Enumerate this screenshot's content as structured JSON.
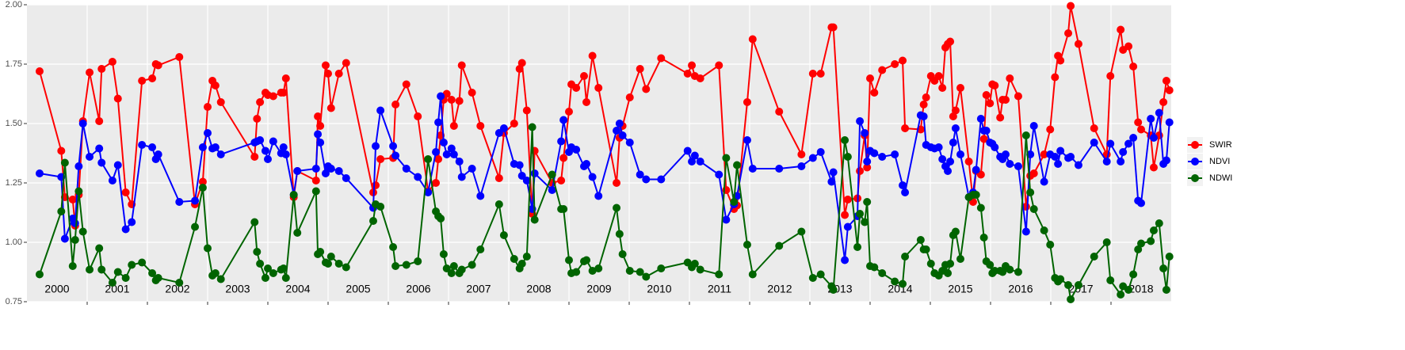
{
  "chart_data": {
    "type": "line",
    "x": [
      2000.21,
      2000.57,
      2000.63,
      2000.76,
      2000.8,
      2000.86,
      2000.93,
      2001.04,
      2001.2,
      2001.24,
      2001.42,
      2001.51,
      2001.64,
      2001.74,
      2001.91,
      2002.08,
      2002.14,
      2002.18,
      2002.53,
      2002.79,
      2002.92,
      2003.0,
      2003.08,
      2003.13,
      2003.22,
      2003.78,
      2003.82,
      2003.87,
      2003.96,
      2004.0,
      2004.09,
      2004.22,
      2004.26,
      2004.3,
      2004.43,
      2004.49,
      2004.8,
      2004.83,
      2004.87,
      2004.96,
      2005.0,
      2005.05,
      2005.18,
      2005.3,
      2005.75,
      2005.79,
      2005.87,
      2006.08,
      2006.12,
      2006.3,
      2006.49,
      2006.66,
      2006.79,
      2006.83,
      2006.87,
      2006.92,
      2006.97,
      2007.05,
      2007.09,
      2007.18,
      2007.22,
      2007.39,
      2007.53,
      2007.84,
      2007.92,
      2008.09,
      2008.18,
      2008.22,
      2008.3,
      2008.39,
      2008.43,
      2008.72,
      2008.87,
      2008.91,
      2009.0,
      2009.04,
      2009.12,
      2009.25,
      2009.29,
      2009.39,
      2009.49,
      2009.79,
      2009.84,
      2009.89,
      2010.01,
      2010.18,
      2010.28,
      2010.53,
      2010.97,
      2011.04,
      2011.09,
      2011.18,
      2011.49,
      2011.61,
      2011.74,
      2011.79,
      2011.96,
      2012.05,
      2012.49,
      2012.86,
      2013.05,
      2013.18,
      2013.36,
      2013.39,
      2013.58,
      2013.63,
      2013.79,
      2013.83,
      2013.91,
      2013.95,
      2014.0,
      2014.07,
      2014.2,
      2014.41,
      2014.54,
      2014.58,
      2014.84,
      2014.89,
      2014.93,
      2015.01,
      2015.07,
      2015.14,
      2015.2,
      2015.25,
      2015.29,
      2015.33,
      2015.38,
      2015.42,
      2015.5,
      2015.64,
      2015.71,
      2015.76,
      2015.84,
      2015.89,
      2015.93,
      2015.99,
      2016.03,
      2016.07,
      2016.16,
      2016.2,
      2016.25,
      2016.32,
      2016.46,
      2016.59,
      2016.66,
      2016.72,
      2016.89,
      2016.99,
      2017.07,
      2017.12,
      2017.16,
      2017.29,
      2017.33,
      2017.46,
      2017.72,
      2017.93,
      2017.99,
      2018.16,
      2018.2,
      2018.29,
      2018.37,
      2018.45,
      2018.5,
      2018.66,
      2018.71,
      2018.8,
      2018.87,
      2018.92,
      2018.97
    ],
    "series": [
      {
        "name": "SWIR",
        "color": "#ff0000",
        "values": [
          1.72,
          1.385,
          1.19,
          1.18,
          1.07,
          1.2,
          1.51,
          1.715,
          1.51,
          1.73,
          1.76,
          1.605,
          1.21,
          1.16,
          1.68,
          1.69,
          1.75,
          1.745,
          1.78,
          1.16,
          1.255,
          1.57,
          1.68,
          1.66,
          1.59,
          1.36,
          1.52,
          1.59,
          1.63,
          1.62,
          1.615,
          1.63,
          1.63,
          1.69,
          1.19,
          1.3,
          1.26,
          1.53,
          1.49,
          1.745,
          1.71,
          1.565,
          1.71,
          1.755,
          1.21,
          1.24,
          1.35,
          1.355,
          1.58,
          1.665,
          1.53,
          1.215,
          1.25,
          1.35,
          1.45,
          1.6,
          1.625,
          1.6,
          1.49,
          1.595,
          1.745,
          1.63,
          1.49,
          1.27,
          1.46,
          1.5,
          1.73,
          1.755,
          1.555,
          1.12,
          1.385,
          1.25,
          1.26,
          1.355,
          1.55,
          1.665,
          1.65,
          1.7,
          1.59,
          1.785,
          1.65,
          1.25,
          1.44,
          1.49,
          1.61,
          1.73,
          1.645,
          1.775,
          1.71,
          1.745,
          1.7,
          1.69,
          1.745,
          1.22,
          1.14,
          1.155,
          1.59,
          1.855,
          1.55,
          1.37,
          1.71,
          1.71,
          1.905,
          1.905,
          1.115,
          1.18,
          1.185,
          1.3,
          1.45,
          1.315,
          1.69,
          1.63,
          1.725,
          1.75,
          1.765,
          1.48,
          1.475,
          1.58,
          1.61,
          1.7,
          1.68,
          1.7,
          1.65,
          1.82,
          1.835,
          1.845,
          1.53,
          1.555,
          1.65,
          1.34,
          1.17,
          1.3,
          1.285,
          1.435,
          1.62,
          1.585,
          1.665,
          1.66,
          1.525,
          1.6,
          1.6,
          1.69,
          1.615,
          1.15,
          1.28,
          1.29,
          1.37,
          1.475,
          1.695,
          1.785,
          1.765,
          1.88,
          1.995,
          1.835,
          1.48,
          1.37,
          1.7,
          1.895,
          1.81,
          1.825,
          1.74,
          1.505,
          1.475,
          1.45,
          1.315,
          1.45,
          1.59,
          1.68,
          1.64
        ]
      },
      {
        "name": "NDVI",
        "color": "#0000ff",
        "values": [
          1.29,
          1.275,
          1.015,
          1.1,
          1.08,
          1.32,
          1.5,
          1.36,
          1.395,
          1.335,
          1.26,
          1.325,
          1.055,
          1.085,
          1.41,
          1.4,
          1.35,
          1.37,
          1.17,
          1.175,
          1.4,
          1.46,
          1.395,
          1.4,
          1.37,
          1.42,
          1.425,
          1.43,
          1.385,
          1.35,
          1.425,
          1.375,
          1.4,
          1.37,
          1.2,
          1.3,
          1.31,
          1.455,
          1.42,
          1.29,
          1.32,
          1.31,
          1.3,
          1.27,
          1.145,
          1.405,
          1.555,
          1.405,
          1.365,
          1.31,
          1.275,
          1.21,
          1.38,
          1.505,
          1.615,
          1.42,
          1.37,
          1.395,
          1.37,
          1.34,
          1.275,
          1.31,
          1.195,
          1.46,
          1.48,
          1.33,
          1.325,
          1.28,
          1.26,
          1.14,
          1.29,
          1.22,
          1.425,
          1.515,
          1.38,
          1.4,
          1.39,
          1.32,
          1.33,
          1.275,
          1.195,
          1.47,
          1.5,
          1.45,
          1.42,
          1.285,
          1.265,
          1.265,
          1.385,
          1.34,
          1.365,
          1.34,
          1.285,
          1.095,
          1.16,
          1.195,
          1.43,
          1.31,
          1.31,
          1.32,
          1.355,
          1.38,
          1.255,
          1.295,
          0.925,
          1.065,
          1.11,
          1.51,
          1.46,
          1.34,
          1.385,
          1.375,
          1.36,
          1.37,
          1.24,
          1.21,
          1.535,
          1.53,
          1.41,
          1.4,
          1.395,
          1.4,
          1.35,
          1.32,
          1.3,
          1.34,
          1.42,
          1.48,
          1.37,
          1.19,
          1.21,
          1.305,
          1.52,
          1.47,
          1.47,
          1.42,
          1.415,
          1.4,
          1.36,
          1.35,
          1.37,
          1.33,
          1.32,
          1.045,
          1.37,
          1.49,
          1.255,
          1.37,
          1.36,
          1.33,
          1.385,
          1.355,
          1.36,
          1.325,
          1.42,
          1.34,
          1.415,
          1.34,
          1.38,
          1.415,
          1.44,
          1.175,
          1.165,
          1.52,
          1.44,
          1.545,
          1.33,
          1.345,
          1.505
        ]
      },
      {
        "name": "NDWI",
        "color": "#006400",
        "values": [
          0.865,
          1.13,
          1.335,
          0.9,
          1.01,
          1.215,
          1.045,
          0.885,
          0.975,
          0.885,
          0.83,
          0.875,
          0.85,
          0.905,
          0.915,
          0.87,
          0.84,
          0.85,
          0.83,
          1.065,
          1.23,
          0.975,
          0.86,
          0.87,
          0.845,
          1.085,
          0.96,
          0.91,
          0.85,
          0.89,
          0.87,
          0.885,
          0.89,
          0.85,
          1.2,
          1.04,
          1.215,
          0.95,
          0.96,
          0.915,
          0.91,
          0.94,
          0.91,
          0.895,
          1.09,
          1.16,
          1.15,
          0.98,
          0.9,
          0.905,
          0.92,
          1.35,
          1.13,
          1.11,
          1.1,
          0.95,
          0.89,
          0.87,
          0.9,
          0.87,
          0.885,
          0.905,
          0.97,
          1.16,
          1.03,
          0.93,
          0.89,
          0.91,
          0.94,
          1.485,
          1.095,
          1.285,
          1.14,
          1.14,
          0.925,
          0.87,
          0.875,
          0.92,
          0.925,
          0.88,
          0.89,
          1.145,
          1.035,
          0.95,
          0.88,
          0.875,
          0.855,
          0.89,
          0.915,
          0.895,
          0.91,
          0.885,
          0.865,
          1.355,
          1.17,
          1.325,
          0.99,
          0.865,
          0.985,
          1.045,
          0.85,
          0.865,
          0.815,
          0.8,
          1.43,
          1.36,
          0.98,
          1.12,
          1.085,
          1.17,
          0.9,
          0.895,
          0.87,
          0.835,
          0.825,
          0.94,
          1.01,
          0.97,
          0.97,
          0.91,
          0.87,
          0.86,
          0.88,
          0.905,
          0.87,
          0.91,
          1.03,
          1.045,
          0.93,
          1.19,
          1.2,
          1.2,
          1.145,
          1.02,
          0.92,
          0.905,
          0.87,
          0.88,
          0.88,
          0.875,
          0.9,
          0.885,
          0.875,
          1.45,
          1.21,
          1.14,
          1.05,
          0.99,
          0.85,
          0.835,
          0.845,
          0.82,
          0.76,
          0.82,
          0.94,
          1.0,
          0.84,
          0.78,
          0.815,
          0.8,
          0.865,
          0.97,
          0.995,
          1.005,
          1.05,
          1.08,
          0.89,
          0.8,
          0.94
        ]
      }
    ],
    "year_labels": [
      "2000",
      "2001",
      "2002",
      "2003",
      "2004",
      "2005",
      "2006",
      "2007",
      "2008",
      "2009",
      "2010",
      "2011",
      "2012",
      "2013",
      "2014",
      "2015",
      "2016",
      "2017",
      "2018"
    ],
    "xlim": [
      2000,
      2019
    ],
    "xticks": [
      2001,
      2002,
      2003,
      2004,
      2005,
      2006,
      2007,
      2008,
      2009,
      2010,
      2011,
      2012,
      2013,
      2014,
      2015,
      2016,
      2017,
      2018
    ],
    "ylim": [
      0.75,
      2
    ],
    "yticks": [
      0.75,
      {
        "value": 1,
        "label": "1.00"
      },
      1.25,
      {
        "value": 1.5,
        "label": "1.50"
      },
      1.75,
      {
        "value": 2,
        "label": "2.00"
      }
    ],
    "grid": true
  }
}
